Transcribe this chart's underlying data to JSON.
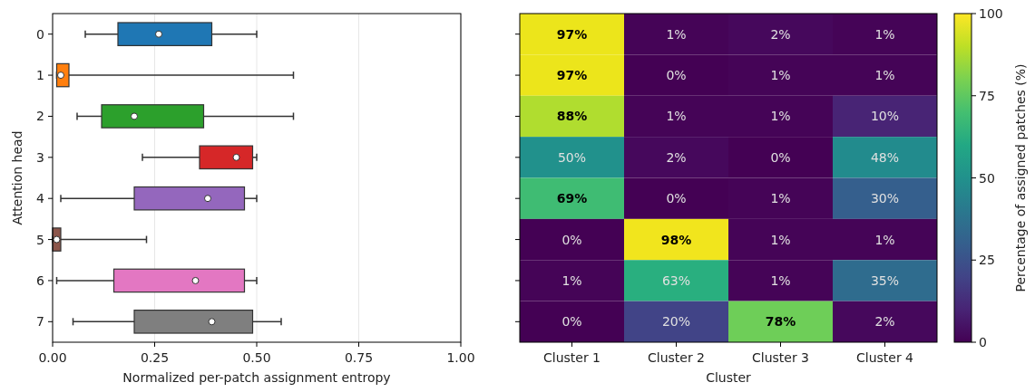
{
  "chart_data": [
    {
      "type": "box",
      "orientation": "horizontal",
      "categories": [
        "0",
        "1",
        "2",
        "3",
        "4",
        "5",
        "6",
        "7"
      ],
      "xlabel": "Normalized per-patch assignment entropy",
      "ylabel": "Attention head",
      "xlim": [
        0,
        1
      ],
      "xticks": [
        {
          "value": 0,
          "label": "0.00"
        },
        {
          "value": 0.25,
          "label": "0.25"
        },
        {
          "value": 0.5,
          "label": "0.50"
        },
        {
          "value": 0.75,
          "label": "0.75"
        },
        {
          "value": 1,
          "label": "1.00"
        }
      ],
      "grid": "x",
      "colors": [
        "#1f77b4",
        "#ff7f0e",
        "#2ca02c",
        "#d62728",
        "#9467bd",
        "#8c564b",
        "#e377c2",
        "#7f7f7f"
      ],
      "boxes": [
        {
          "low": 0.08,
          "q1": 0.16,
          "median": 0.26,
          "q3": 0.39,
          "high": 0.5
        },
        {
          "low": 0.01,
          "q1": 0.01,
          "median": 0.02,
          "q3": 0.04,
          "high": 0.59
        },
        {
          "low": 0.06,
          "q1": 0.12,
          "median": 0.2,
          "q3": 0.37,
          "high": 0.59
        },
        {
          "low": 0.22,
          "q1": 0.36,
          "median": 0.45,
          "q3": 0.49,
          "high": 0.5
        },
        {
          "low": 0.02,
          "q1": 0.2,
          "median": 0.38,
          "q3": 0.47,
          "high": 0.5
        },
        {
          "low": 0.0,
          "q1": 0.0,
          "median": 0.01,
          "q3": 0.02,
          "high": 0.23
        },
        {
          "low": 0.01,
          "q1": 0.15,
          "median": 0.35,
          "q3": 0.47,
          "high": 0.5
        },
        {
          "low": 0.05,
          "q1": 0.2,
          "median": 0.39,
          "q3": 0.49,
          "high": 0.56
        }
      ]
    },
    {
      "type": "heatmap",
      "categories": [
        "Cluster 1",
        "Cluster 2",
        "Cluster 3",
        "Cluster 4"
      ],
      "y_categories": [
        "0",
        "1",
        "2",
        "3",
        "4",
        "5",
        "6",
        "7"
      ],
      "tick_labels": "x",
      "xlabel": "Cluster",
      "clabel": "Percentage of assigned patches (%)",
      "clim": [
        0,
        100
      ],
      "cticks": [
        0,
        25,
        50,
        75,
        100
      ],
      "cells": [
        [
          97,
          1,
          2,
          1
        ],
        [
          97,
          0,
          1,
          1
        ],
        [
          88,
          1,
          1,
          10
        ],
        [
          50,
          2,
          0,
          48
        ],
        [
          69,
          0,
          1,
          30
        ],
        [
          0,
          98,
          1,
          1
        ],
        [
          1,
          63,
          1,
          35
        ],
        [
          0,
          20,
          78,
          2
        ]
      ],
      "cell_labels": [
        [
          "97%",
          "1%",
          "2%",
          "1%"
        ],
        [
          "97%",
          "0%",
          "1%",
          "1%"
        ],
        [
          "88%",
          "1%",
          "1%",
          "10%"
        ],
        [
          "50%",
          "2%",
          "0%",
          "48%"
        ],
        [
          "69%",
          "0%",
          "1%",
          "30%"
        ],
        [
          "0%",
          "98%",
          "1%",
          "1%"
        ],
        [
          "1%",
          "63%",
          "1%",
          "35%"
        ],
        [
          "0%",
          "20%",
          "78%",
          "2%"
        ]
      ]
    }
  ]
}
